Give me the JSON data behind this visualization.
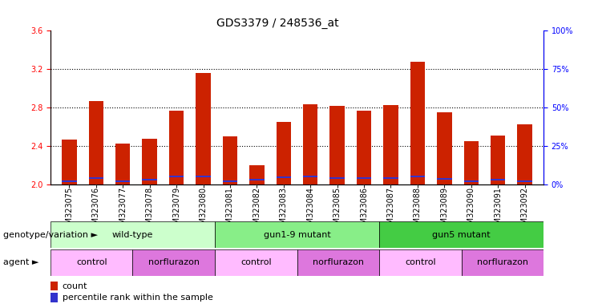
{
  "title": "GDS3379 / 248536_at",
  "samples": [
    "GSM323075",
    "GSM323076",
    "GSM323077",
    "GSM323078",
    "GSM323079",
    "GSM323080",
    "GSM323081",
    "GSM323082",
    "GSM323083",
    "GSM323084",
    "GSM323085",
    "GSM323086",
    "GSM323087",
    "GSM323088",
    "GSM323089",
    "GSM323090",
    "GSM323091",
    "GSM323092"
  ],
  "count_values": [
    2.47,
    2.87,
    2.43,
    2.48,
    2.77,
    3.16,
    2.5,
    2.2,
    2.65,
    2.84,
    2.82,
    2.77,
    2.83,
    3.28,
    2.75,
    2.45,
    2.51,
    2.63
  ],
  "percentile_values": [
    2.04,
    2.07,
    2.04,
    2.05,
    2.09,
    2.09,
    2.04,
    2.05,
    2.08,
    2.09,
    2.07,
    2.07,
    2.07,
    2.09,
    2.06,
    2.04,
    2.05,
    2.04
  ],
  "ymin": 2.0,
  "ymax": 3.6,
  "yticks_left": [
    2.0,
    2.4,
    2.8,
    3.2,
    3.6
  ],
  "yticks_right": [
    0,
    25,
    50,
    75,
    100
  ],
  "bar_color": "#cc2200",
  "percentile_color": "#3333cc",
  "bar_width": 0.55,
  "genotype_groups": [
    {
      "label": "wild-type",
      "start": 0,
      "end": 5,
      "color": "#ccffcc"
    },
    {
      "label": "gun1-9 mutant",
      "start": 6,
      "end": 11,
      "color": "#88ee88"
    },
    {
      "label": "gun5 mutant",
      "start": 12,
      "end": 17,
      "color": "#44cc44"
    }
  ],
  "agent_groups": [
    {
      "label": "control",
      "start": 0,
      "end": 2,
      "color": "#ffbbff"
    },
    {
      "label": "norflurazon",
      "start": 3,
      "end": 5,
      "color": "#dd77dd"
    },
    {
      "label": "control",
      "start": 6,
      "end": 8,
      "color": "#ffbbff"
    },
    {
      "label": "norflurazon",
      "start": 9,
      "end": 11,
      "color": "#dd77dd"
    },
    {
      "label": "control",
      "start": 12,
      "end": 14,
      "color": "#ffbbff"
    },
    {
      "label": "norflurazon",
      "start": 15,
      "end": 17,
      "color": "#dd77dd"
    }
  ],
  "genotype_label": "genotype/variation",
  "agent_label": "agent",
  "legend_count": "count",
  "legend_percentile": "percentile rank within the sample",
  "title_fontsize": 10,
  "tick_fontsize": 7,
  "label_fontsize": 8,
  "group_fontsize": 8
}
